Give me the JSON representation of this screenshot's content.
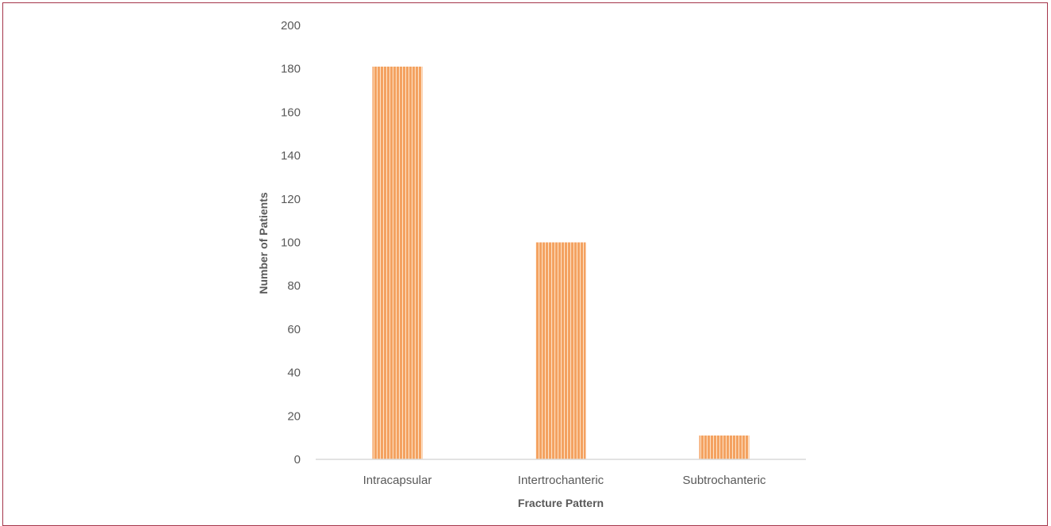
{
  "chart_data": {
    "type": "bar",
    "categories": [
      "Intracapsular",
      "Intertrochanteric",
      "Subtrochanteric"
    ],
    "values": [
      181,
      100,
      11
    ],
    "xlabel": "Fracture Pattern",
    "ylabel": "Number of Patients",
    "ylim": [
      0,
      200
    ],
    "yticks": [
      "0",
      "20",
      "40",
      "60",
      "80",
      "100",
      "120",
      "140",
      "160",
      "180",
      "200"
    ],
    "grid": false,
    "bar_color": "#f4a261",
    "bar_stripe_color": "#ffffff",
    "frame_color": "#a5354a"
  }
}
